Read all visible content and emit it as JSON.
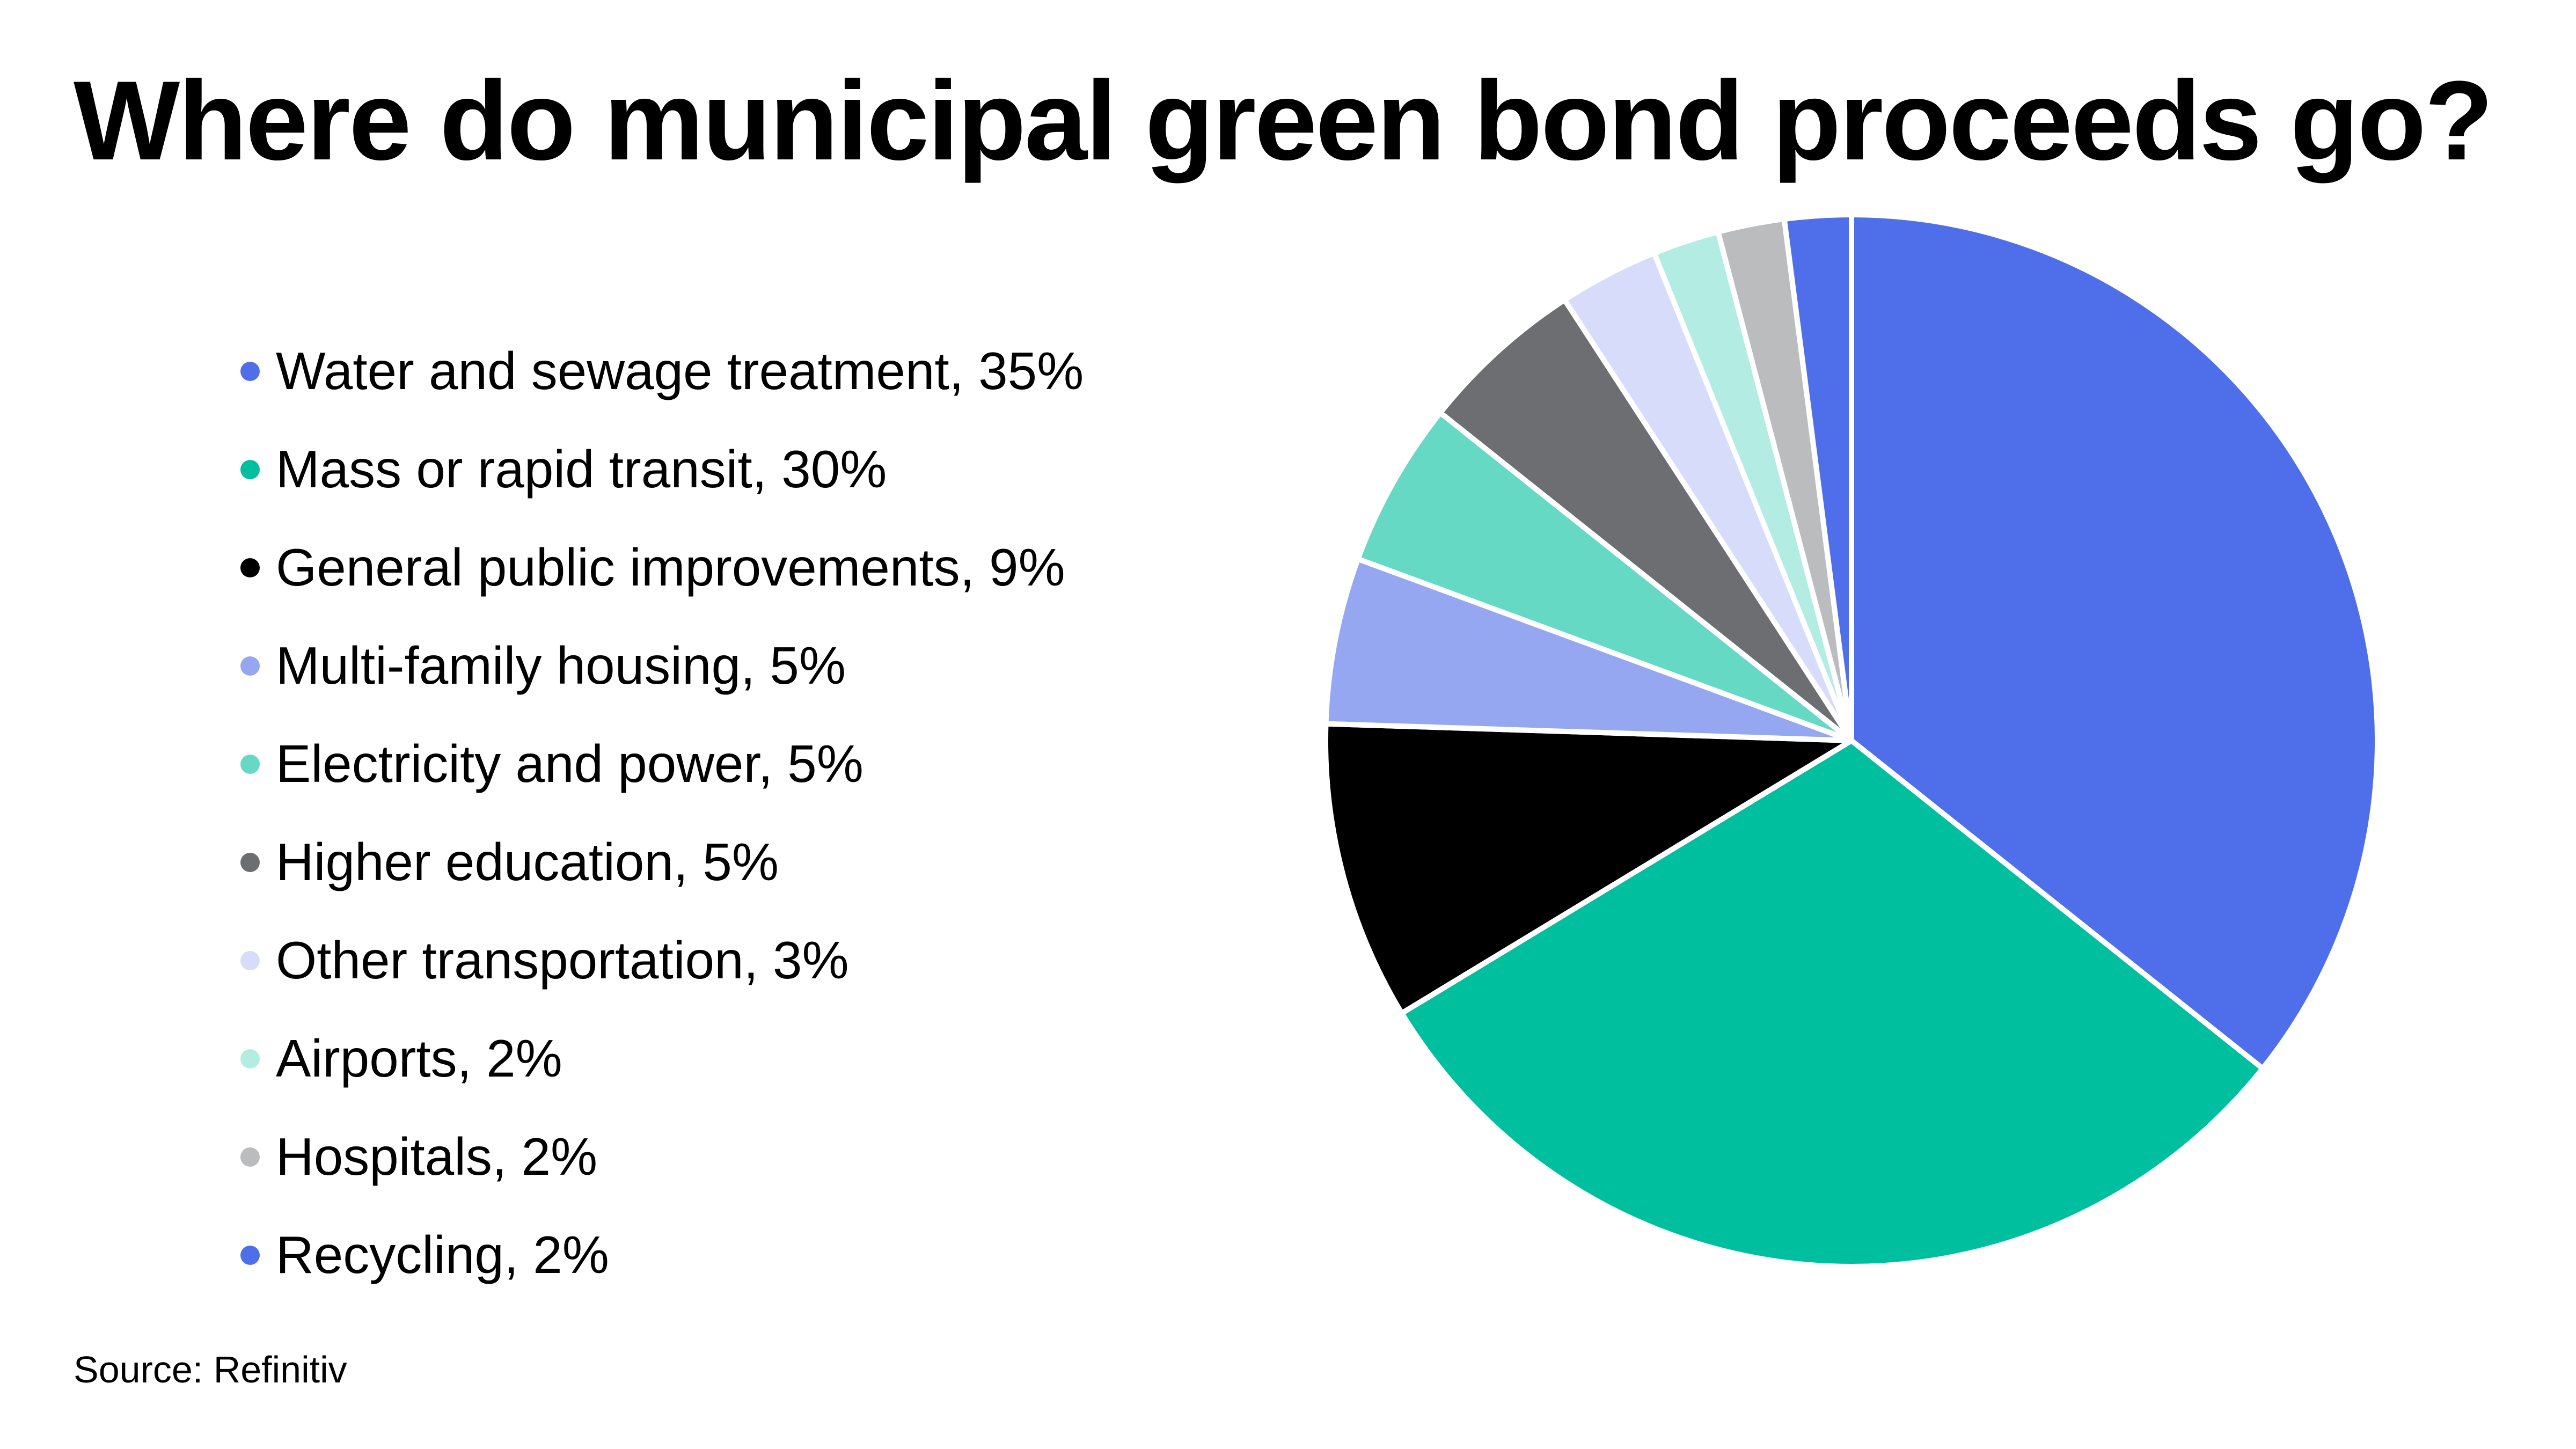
{
  "title": "Where do municipal green bond proceeds go?",
  "source": "Source: Refinitiv",
  "chart_data": {
    "type": "pie",
    "title": "Where do municipal green bond proceeds go?",
    "slices": [
      {
        "label": "Water and sewage treatment, 35%",
        "category": "Water and sewage treatment",
        "value": 35,
        "color": "#4F6FEA"
      },
      {
        "label": "Mass or rapid transit, 30%",
        "category": "Mass or rapid transit",
        "value": 30,
        "color": "#00BF9F"
      },
      {
        "label": "General public improvements, 9%",
        "category": "General public improvements",
        "value": 9,
        "color": "#000000"
      },
      {
        "label": "Multi-family housing, 5%",
        "category": "Multi-family housing",
        "value": 5,
        "color": "#96A7F2"
      },
      {
        "label": "Electricity and power, 5%",
        "category": "Electricity and power",
        "value": 5,
        "color": "#66D9C4"
      },
      {
        "label": "Higher education, 5%",
        "category": "Higher education",
        "value": 5,
        "color": "#6D6E71"
      },
      {
        "label": "Other transportation, 3%",
        "category": "Other transportation",
        "value": 3,
        "color": "#D6DCF9"
      },
      {
        "label": "Airports, 2%",
        "category": "Airports",
        "value": 2,
        "color": "#B3ECE2"
      },
      {
        "label": "Hospitals, 2%",
        "category": "Hospitals",
        "value": 2,
        "color": "#BBBCBE"
      },
      {
        "label": "Recycling, 2%",
        "category": "Recycling",
        "value": 2,
        "color": "#4F6FEA"
      }
    ],
    "legend_position": "left",
    "start_angle_degrees": 0,
    "direction": "clockwise"
  }
}
